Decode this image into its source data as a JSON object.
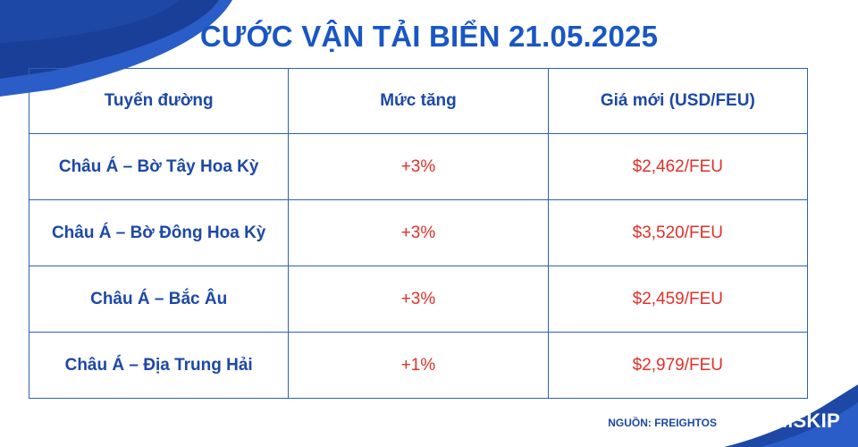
{
  "title": "CƯỚC VẬN TẢI BIỂN 21.05.2025",
  "table": {
    "headers": [
      "Tuyến đường",
      "Mức tăng",
      "Giá mới (USD/FEU)"
    ],
    "rows": [
      {
        "route": "Châu Á – Bờ Tây Hoa Kỳ",
        "increase": "+3%",
        "price": "$2,462/FEU"
      },
      {
        "route": "Châu Á – Bờ Đông Hoa Kỳ",
        "increase": "+3%",
        "price": "$3,520/FEU"
      },
      {
        "route": "Châu Á – Bắc Âu",
        "increase": "+3%",
        "price": "$2,459/FEU"
      },
      {
        "route": "Châu Á – Địa Trung Hải",
        "increase": "+1%",
        "price": "$2,979/FEU"
      }
    ]
  },
  "source": "NGUỒN: FREIGHTOS",
  "logo": {
    "text": "EIMSKIP",
    "icon": "eimskip-logo-icon"
  },
  "colors": {
    "primary_blue": "#1d48a5",
    "title_blue": "#1a56c4",
    "accent_red": "#e0302a",
    "border_blue": "#2f5fb7"
  }
}
